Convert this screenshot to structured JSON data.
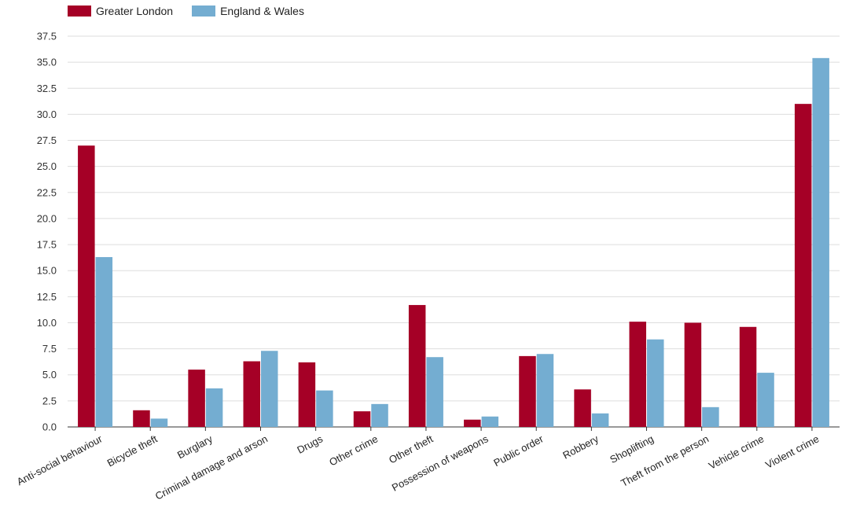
{
  "legend": {
    "series0": "Greater London",
    "series1": "England & Wales"
  },
  "colors": {
    "series0": "#a50026",
    "series1": "#74add1",
    "grid": "#dddddd",
    "axis": "#333333"
  },
  "chart_data": {
    "type": "bar",
    "title": "",
    "xlabel": "",
    "ylabel": "",
    "ylim": [
      0,
      37.5
    ],
    "yticks": [
      "0.0",
      "2.5",
      "5.0",
      "7.5",
      "10.0",
      "12.5",
      "15.0",
      "17.5",
      "20.0",
      "22.5",
      "25.0",
      "27.5",
      "30.0",
      "32.5",
      "35.0",
      "37.5"
    ],
    "grid": true,
    "legend_position": "top-left",
    "categories": [
      "Anti-social behaviour",
      "Bicycle theft",
      "Burglary",
      "Criminal damage and arson",
      "Drugs",
      "Other crime",
      "Other theft",
      "Possession of weapons",
      "Public order",
      "Robbery",
      "Shoplifting",
      "Theft from the person",
      "Vehicle crime",
      "Violent crime"
    ],
    "series": [
      {
        "name": "Greater London",
        "values": [
          27.0,
          1.6,
          5.5,
          6.3,
          6.2,
          1.5,
          11.7,
          0.7,
          6.8,
          3.6,
          10.1,
          10.0,
          9.6,
          31.0
        ]
      },
      {
        "name": "England & Wales",
        "values": [
          16.3,
          0.8,
          3.7,
          7.3,
          3.5,
          2.2,
          6.7,
          1.0,
          7.0,
          1.3,
          8.4,
          1.9,
          5.2,
          35.4
        ]
      }
    ]
  }
}
